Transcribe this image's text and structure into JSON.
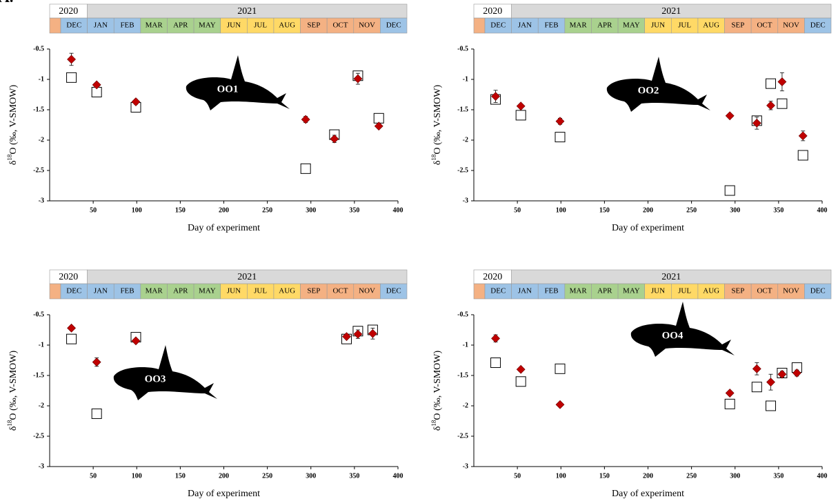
{
  "panel_label": "A.",
  "timeline": {
    "years": [
      "2020",
      "2021"
    ],
    "year_colors": [
      "#ffffff",
      "#d9d9d9"
    ],
    "lead_color": "#f4b183",
    "months": [
      "DEC",
      "JAN",
      "FEB",
      "MAR",
      "APR",
      "MAY",
      "JUN",
      "JUL",
      "AUG",
      "SEP",
      "OCT",
      "NOV",
      "DEC"
    ],
    "month_colors": [
      "#9dc3e6",
      "#9dc3e6",
      "#9dc3e6",
      "#a9d18e",
      "#a9d18e",
      "#a9d18e",
      "#ffd966",
      "#ffd966",
      "#ffd966",
      "#f4b183",
      "#f4b183",
      "#f4b183",
      "#9dc3e6"
    ]
  },
  "chart_data": [
    {
      "type": "scatter",
      "annotation": "OO1",
      "x_label": "Day of experiment",
      "y_label": [
        "δ",
        "18",
        "O (‰, V-SMOW)"
      ],
      "xlim": [
        0,
        400
      ],
      "xticks": [
        50,
        100,
        150,
        200,
        250,
        300,
        350,
        400
      ],
      "ylim": [
        -3,
        -0.5
      ],
      "yticks": [
        -0.5,
        -1,
        -1.5,
        -2,
        -2.5,
        -3
      ],
      "series": [
        {
          "marker": "square",
          "color": "#ffffff",
          "x": [
            25,
            54,
            99,
            294,
            327,
            354,
            378
          ],
          "values": [
            -0.97,
            -1.21,
            -1.46,
            -2.47,
            -1.91,
            -0.94,
            -1.64
          ]
        },
        {
          "marker": "diamond",
          "color": "#c00000",
          "x": [
            25,
            54,
            99,
            294,
            327,
            354,
            378
          ],
          "values": [
            -0.67,
            -1.09,
            -1.37,
            -1.66,
            -1.98,
            -0.99,
            -1.77
          ],
          "errors": [
            0.1,
            0.03,
            0.04,
            0.05,
            0.06,
            0.09,
            0.03
          ]
        }
      ]
    },
    {
      "type": "scatter",
      "annotation": "OO2",
      "x_label": "Day of experiment",
      "y_label": [
        "δ",
        "18",
        "O (‰, V-SMOW)"
      ],
      "xlim": [
        0,
        400
      ],
      "xticks": [
        50,
        100,
        150,
        200,
        250,
        300,
        350,
        400
      ],
      "ylim": [
        -3,
        -0.5
      ],
      "yticks": [
        -0.5,
        -1,
        -1.5,
        -2,
        -2.5,
        -3
      ],
      "series": [
        {
          "marker": "square",
          "color": "#ffffff",
          "x": [
            25,
            54,
            99,
            294,
            325,
            341,
            354,
            378
          ],
          "values": [
            -1.33,
            -1.59,
            -1.95,
            -2.83,
            -1.68,
            -1.07,
            -1.4,
            -2.25
          ]
        },
        {
          "marker": "diamond",
          "color": "#c00000",
          "x": [
            25,
            54,
            99,
            294,
            325,
            341,
            354,
            378
          ],
          "values": [
            -1.28,
            -1.44,
            -1.69,
            -1.6,
            -1.72,
            -1.43,
            -1.04,
            -1.93
          ],
          "errors": [
            0.1,
            0.02,
            0.05,
            0.02,
            0.1,
            0.07,
            0.15,
            0.08
          ]
        }
      ]
    },
    {
      "type": "scatter",
      "annotation": "OO3",
      "x_label": "Day of experiment",
      "y_label": [
        "δ",
        "18",
        "O (‰, V-SMOW)"
      ],
      "xlim": [
        0,
        400
      ],
      "xticks": [
        50,
        100,
        150,
        200,
        250,
        300,
        350,
        400
      ],
      "ylim": [
        -3,
        -0.5
      ],
      "yticks": [
        -0.5,
        -1,
        -1.5,
        -2,
        -2.5,
        -3
      ],
      "series": [
        {
          "marker": "square",
          "color": "#ffffff",
          "x": [
            25,
            54,
            99,
            341,
            354,
            371
          ],
          "values": [
            -0.9,
            -2.13,
            -0.87,
            -0.9,
            -0.77,
            -0.75
          ]
        },
        {
          "marker": "diamond",
          "color": "#c00000",
          "x": [
            25,
            54,
            99,
            341,
            354,
            371
          ],
          "values": [
            -0.72,
            -1.28,
            -0.93,
            -0.86,
            -0.82,
            -0.81
          ],
          "errors": [
            0.03,
            0.07,
            0.03,
            0.03,
            0.07,
            0.09
          ]
        }
      ]
    },
    {
      "type": "scatter",
      "annotation": "OO4",
      "x_label": "Day of experiment",
      "y_label": [
        "δ",
        "18",
        "O (‰, V-SMOW)"
      ],
      "xlim": [
        0,
        400
      ],
      "xticks": [
        50,
        100,
        150,
        200,
        250,
        300,
        350,
        400
      ],
      "ylim": [
        -3,
        -0.5
      ],
      "yticks": [
        -0.5,
        -1,
        -1.5,
        -2,
        -2.5,
        -3
      ],
      "series": [
        {
          "marker": "square",
          "color": "#ffffff",
          "x": [
            25,
            54,
            99,
            294,
            325,
            341,
            354,
            371
          ],
          "values": [
            -1.29,
            -1.6,
            -1.39,
            -1.97,
            -1.69,
            -2.0,
            -1.46,
            -1.37
          ]
        },
        {
          "marker": "diamond",
          "color": "#c00000",
          "x": [
            25,
            54,
            99,
            294,
            325,
            341,
            354,
            371
          ],
          "values": [
            -0.89,
            -1.4,
            -1.98,
            -1.79,
            -1.39,
            -1.61,
            -1.48,
            -1.46
          ],
          "errors": [
            0.06,
            0.02,
            0.02,
            0.02,
            0.1,
            0.13,
            0.05,
            0.05
          ]
        }
      ]
    }
  ]
}
